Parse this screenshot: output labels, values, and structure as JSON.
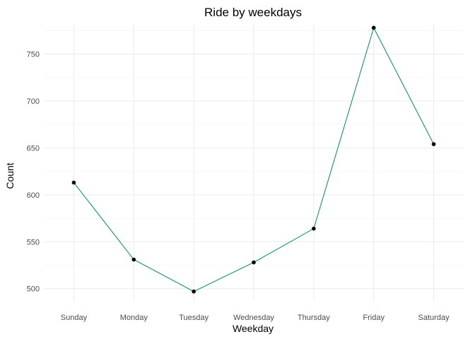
{
  "chart_data": {
    "type": "line",
    "title": "Ride by weekdays",
    "xlabel": "Weekday",
    "ylabel": "Count",
    "categories": [
      "Sunday",
      "Monday",
      "Tuesday",
      "Wednesday",
      "Thursday",
      "Friday",
      "Saturday"
    ],
    "series": [
      {
        "values": [
          613,
          531,
          497,
          528,
          564,
          778,
          654
        ]
      }
    ],
    "ylim": [
      487,
      782
    ],
    "yticks": [
      500,
      550,
      600,
      650,
      700,
      750
    ],
    "grid": true,
    "legend": "none",
    "line_color": "#1a9070",
    "point_color": "#000000",
    "background": "#ffffff"
  }
}
